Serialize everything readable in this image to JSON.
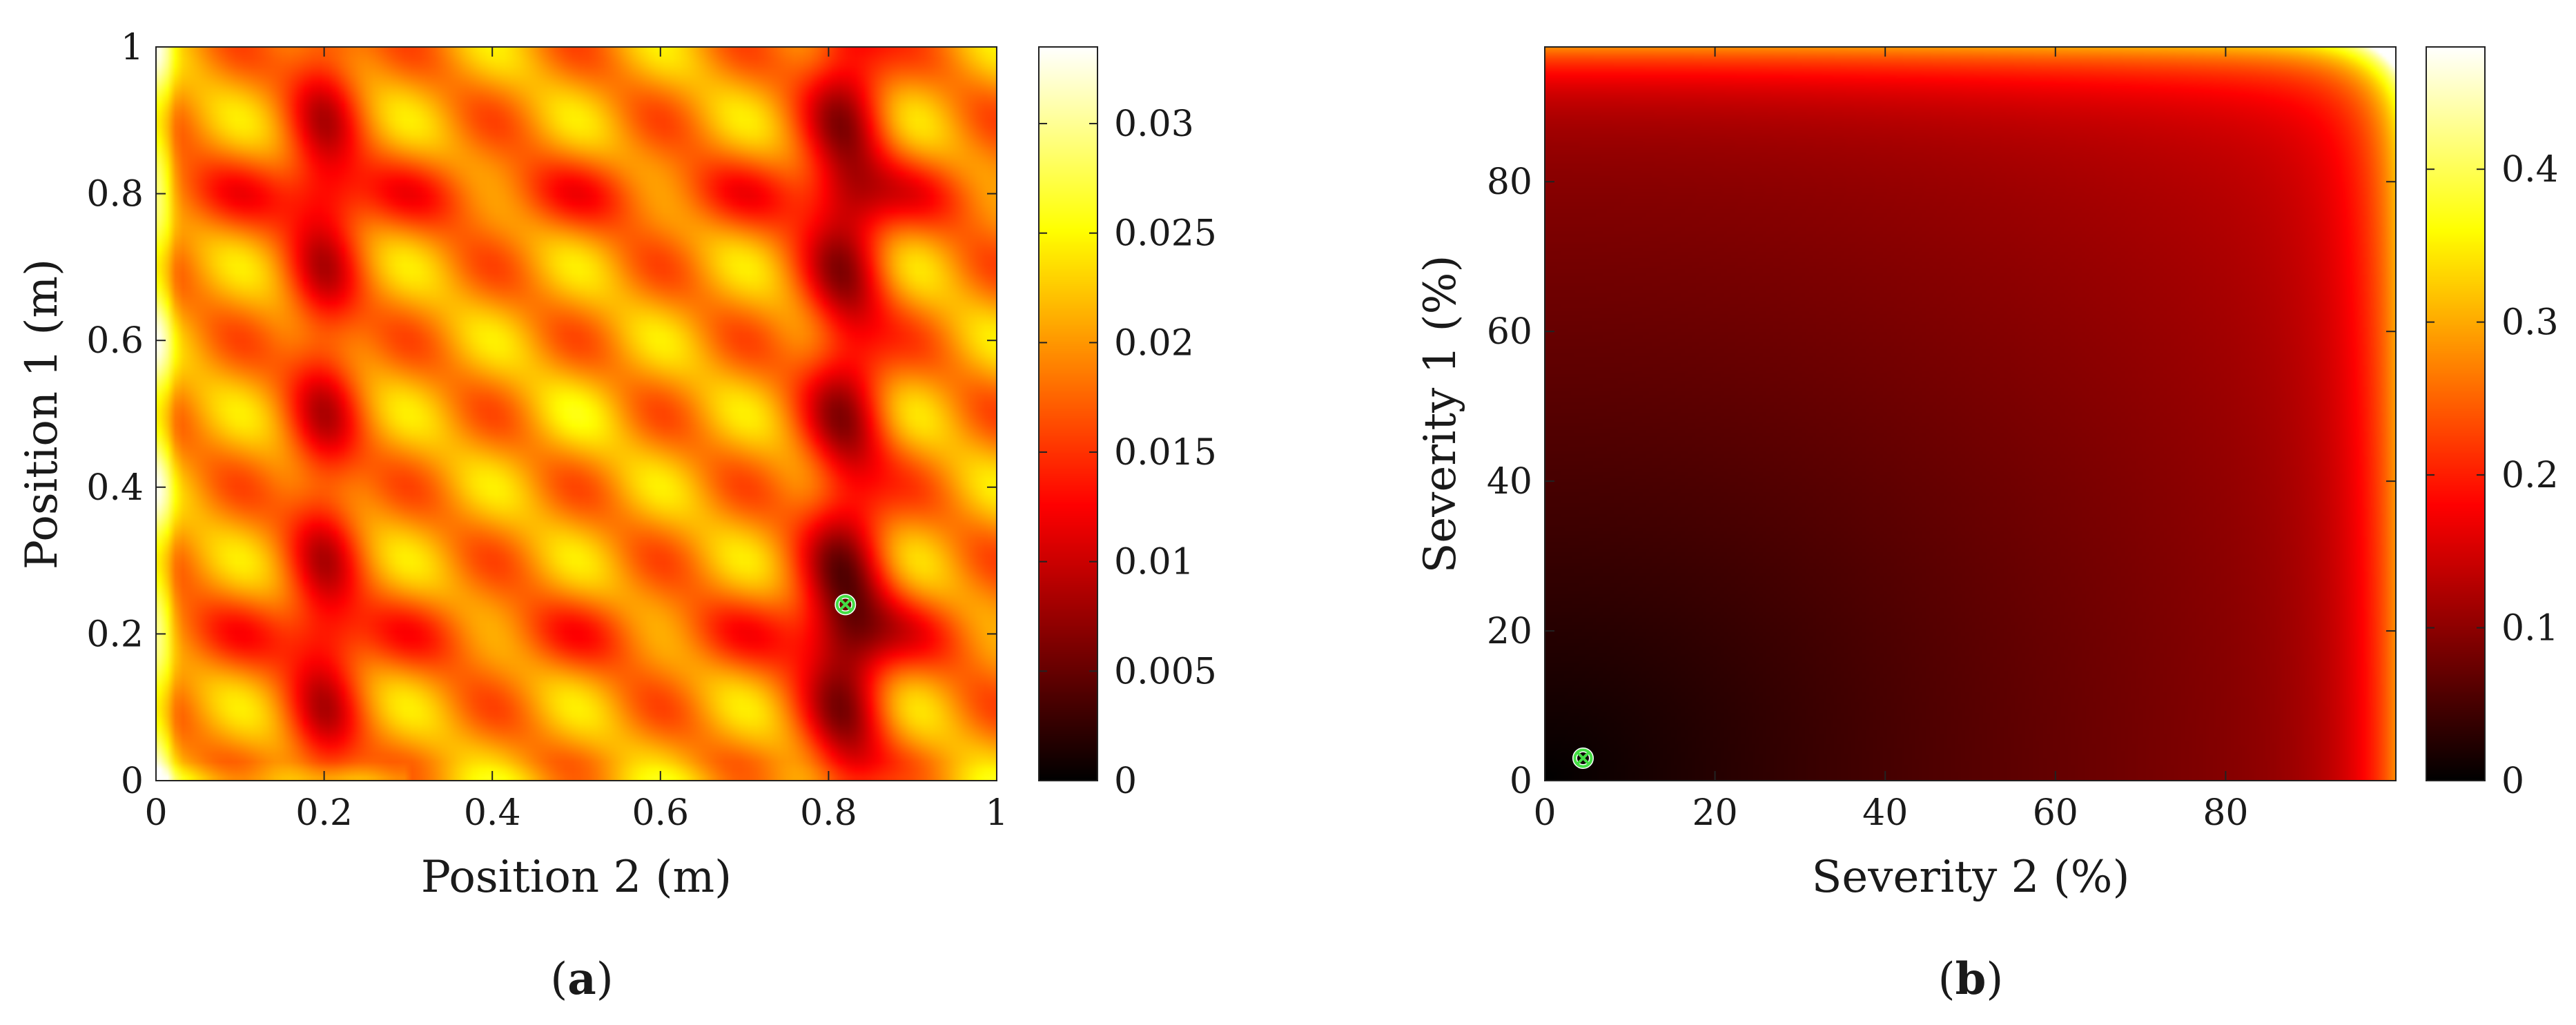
{
  "chart_data": [
    {
      "type": "heatmap",
      "panel_label": "(a)",
      "panel_letter": "a",
      "xlabel": "Position 2 (m)",
      "ylabel": "Position 1 (m)",
      "xlim": [
        0,
        1
      ],
      "ylim": [
        0,
        1
      ],
      "xticks": [
        0,
        0.2,
        0.4,
        0.6,
        0.8,
        1
      ],
      "xtick_labels": [
        "0",
        "0.2",
        "0.4",
        "0.6",
        "0.8",
        "1"
      ],
      "yticks": [
        0,
        0.2,
        0.4,
        0.6,
        0.8,
        1
      ],
      "ytick_labels": [
        "0",
        "0.2",
        "0.4",
        "0.6",
        "0.8",
        "1"
      ],
      "colorbar": {
        "range": [
          0,
          0.0335
        ],
        "ticks": [
          0,
          0.005,
          0.01,
          0.015,
          0.02,
          0.025,
          0.03
        ],
        "tick_labels": [
          "0",
          "0.005",
          "0.01",
          "0.015",
          "0.02",
          "0.025",
          "0.03"
        ]
      },
      "colormap": "hot",
      "description_of_field": "periodic blob pattern, period ~0.2 m; dark valleys along Position 2 ≈ 0.2 and 0.8 and Position 1 ≈ 0.2 and 0.8; bright edge at Position 2 ≈ 0",
      "minimum_marker": {
        "x": 0.82,
        "y": 0.24,
        "color": "#44dd44"
      }
    },
    {
      "type": "heatmap",
      "panel_label": "(b)",
      "panel_letter": "b",
      "xlabel": "Severity 2 (%)",
      "ylabel": "Severity 1 (%)",
      "xlim": [
        0,
        100
      ],
      "ylim": [
        0,
        98
      ],
      "xticks": [
        0,
        20,
        40,
        60,
        80
      ],
      "xtick_labels": [
        "0",
        "20",
        "40",
        "60",
        "80"
      ],
      "yticks": [
        0,
        20,
        40,
        60,
        80
      ],
      "ytick_labels": [
        "0",
        "20",
        "40",
        "60",
        "80"
      ],
      "colorbar": {
        "range": [
          0,
          0.48
        ],
        "ticks": [
          0,
          0.1,
          0.2,
          0.3,
          0.4
        ],
        "tick_labels": [
          "0",
          "0.1",
          "0.2",
          "0.3",
          "0.4"
        ]
      },
      "colormap": "hot",
      "description_of_field": "radial growth from origin; rapid increase near the upper (Severity 1 ≈ 98) and right (Severity 2 ≈ 100) edges",
      "minimum_marker": {
        "x": 4.5,
        "y": 3,
        "color": "#44dd44"
      }
    }
  ]
}
